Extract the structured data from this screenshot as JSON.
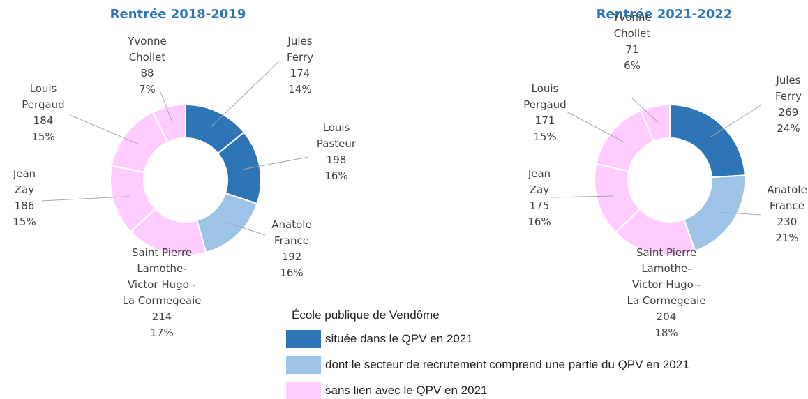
{
  "chart_data": [
    {
      "type": "donut",
      "title": "Rentrée 2018-2019",
      "categories": [
        "Jules\nFerry",
        "Louis\nPasteur",
        "Anatole\nFrance",
        "Saint Pierre\nLamothe-\nVictor Hugo -\nLa Cormegeaie",
        "Jean\nZay",
        "Louis\nPergaud",
        "Yvonne\nChollet"
      ],
      "values": [
        174,
        198,
        192,
        214,
        186,
        184,
        88
      ],
      "percent_labels": [
        "14%",
        "16%",
        "16%",
        "17%",
        "15%",
        "15%",
        "7%"
      ],
      "colors": [
        "#2e75b6",
        "#2e75b6",
        "#9dc3e6",
        "#ffccff",
        "#ffccff",
        "#ffccff",
        "#ffccff"
      ]
    },
    {
      "type": "donut",
      "title": "Rentrée 2021-2022",
      "categories": [
        "Jules\nFerry",
        "Anatole\nFrance",
        "Saint Pierre\nLamothe-\nVictor Hugo -\nLa Cormegeaie",
        "Jean\nZay",
        "Louis\nPergaud",
        "Yvonne\nChollet"
      ],
      "values": [
        269,
        230,
        204,
        175,
        171,
        71
      ],
      "percent_labels": [
        "24%",
        "21%",
        "18%",
        "16%",
        "15%",
        "6%"
      ],
      "colors": [
        "#2e75b6",
        "#9dc3e6",
        "#ffccff",
        "#ffccff",
        "#ffccff",
        "#ffccff"
      ]
    }
  ],
  "legend": {
    "title": "École publique de Vendôme",
    "items": [
      {
        "name": "située dans le QPV en 2021",
        "color": "#2e75b6"
      },
      {
        "name": "dont le secteur de recrutement comprend une partie du QPV en 2021",
        "color": "#9dc3e6"
      },
      {
        "name": "sans lien avec le QPV en 2021",
        "color": "#ffccff"
      }
    ]
  }
}
